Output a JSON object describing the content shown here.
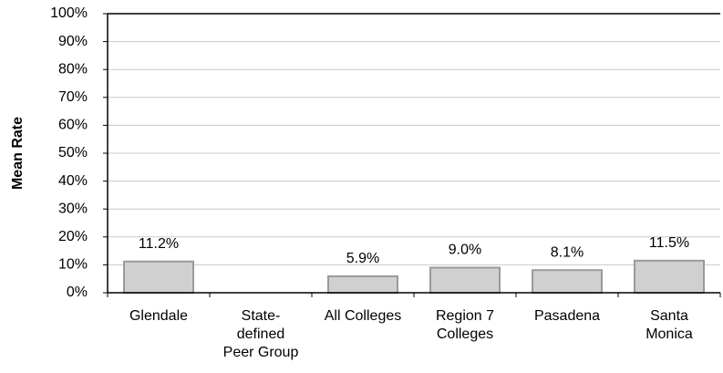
{
  "chart_data": {
    "type": "bar",
    "y_label": "Mean Rate",
    "categories": [
      "Glendale",
      "State-defined Peer Group",
      "All Colleges",
      "Region 7 Colleges",
      "Pasadena",
      "Santa Monica"
    ],
    "values": [
      11.2,
      null,
      5.9,
      9.0,
      8.1,
      11.5
    ],
    "value_labels": [
      "11.2%",
      null,
      "5.9%",
      "9.0%",
      "8.1%",
      "11.5%"
    ],
    "color": "#d0d0d0",
    "ylim": [
      0,
      100
    ],
    "yticks": [
      {
        "value": 0,
        "label": "0%"
      },
      {
        "value": 10,
        "label": "10%"
      },
      {
        "value": 20,
        "label": "20%"
      },
      {
        "value": 30,
        "label": "30%"
      },
      {
        "value": 40,
        "label": "40%"
      },
      {
        "value": 50,
        "label": "50%"
      },
      {
        "value": 60,
        "label": "60%"
      },
      {
        "value": 70,
        "label": "70%"
      },
      {
        "value": 80,
        "label": "80%"
      },
      {
        "value": 90,
        "label": "90%"
      },
      {
        "value": 100,
        "label": "100%"
      }
    ],
    "grid": true
  }
}
